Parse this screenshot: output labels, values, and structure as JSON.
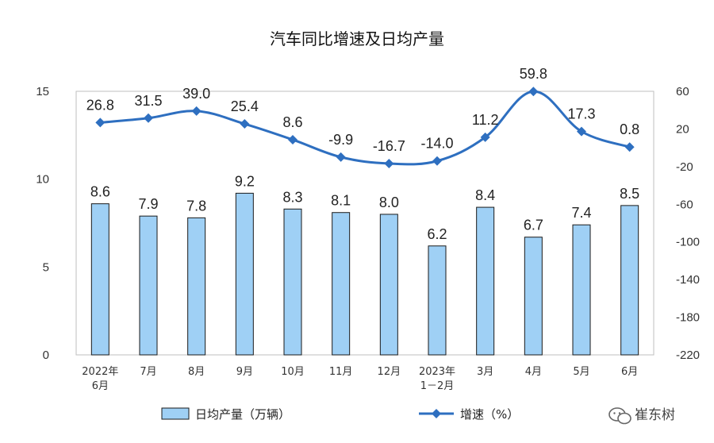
{
  "chart_data": {
    "type": "bar",
    "title": "汽车同比增速及日均产量",
    "categories": [
      [
        "2022年",
        "6月"
      ],
      [
        "7月"
      ],
      [
        "8月"
      ],
      [
        "9月"
      ],
      [
        "10月"
      ],
      [
        "11月"
      ],
      [
        "12月"
      ],
      [
        "2023年",
        "1－2月"
      ],
      [
        "3月"
      ],
      [
        "4月"
      ],
      [
        "5月"
      ],
      [
        "6月"
      ]
    ],
    "series": [
      {
        "name": "日均产量（万辆）",
        "type": "bar",
        "axis": "left",
        "color": "#9fd0f5",
        "values": [
          8.6,
          7.9,
          7.8,
          9.2,
          8.3,
          8.1,
          8.0,
          6.2,
          8.4,
          6.7,
          7.4,
          8.5
        ],
        "labels": [
          "8.6",
          "7.9",
          "7.8",
          "9.2",
          "8.3",
          "8.1",
          "8.0",
          "6.2",
          "8.4",
          "6.7",
          "7.4",
          "8.5"
        ]
      },
      {
        "name": "增速（%）",
        "type": "line",
        "axis": "right",
        "color": "#2e6fc0",
        "values": [
          26.8,
          31.5,
          39.0,
          25.4,
          8.6,
          -9.9,
          -16.7,
          -14.0,
          11.2,
          59.8,
          17.3,
          0.8
        ],
        "labels": [
          "26.8",
          "31.5",
          "39.0",
          "25.4",
          "8.6",
          "-9.9",
          "-16.7",
          "-14.0",
          "11.2",
          "59.8",
          "17.3",
          "0.8"
        ]
      }
    ],
    "y_left": {
      "min": 0,
      "max": 15,
      "ticks": [
        "0",
        "5",
        "10",
        "15"
      ]
    },
    "y_right": {
      "min": -220,
      "max": 60,
      "ticks": [
        "60",
        "20",
        "-20",
        "-60",
        "-100",
        "-140",
        "-180",
        "-220"
      ]
    },
    "grid": false,
    "legend_position": "bottom"
  },
  "watermark": {
    "text": "崔东树"
  }
}
